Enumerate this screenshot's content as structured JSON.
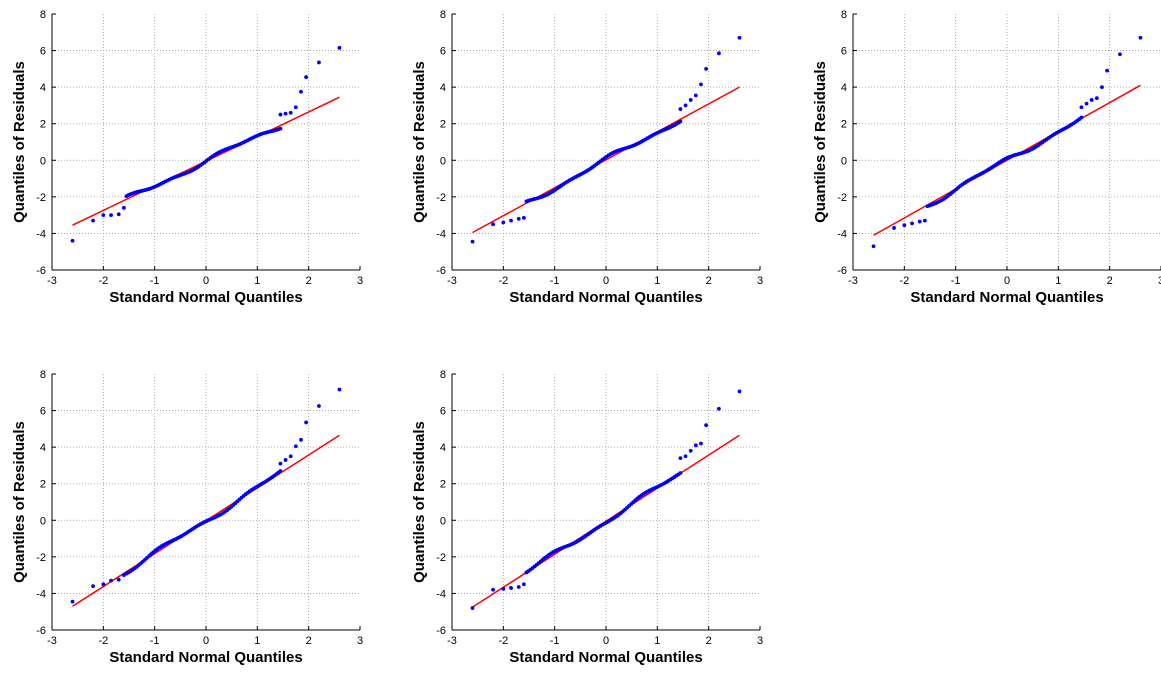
{
  "chart_data": [
    {
      "type": "scatter",
      "xlabel": "Standard Normal Quantiles",
      "ylabel": "Quantiles of Residuals",
      "xlim": [
        -3,
        3
      ],
      "ylim": [
        -6,
        8
      ],
      "xticks": [
        -3,
        -2,
        -1,
        0,
        1,
        2,
        3
      ],
      "yticks": [
        -6,
        -4,
        -2,
        0,
        2,
        4,
        6,
        8
      ],
      "grid": true,
      "reference_line": {
        "x": [
          -2.6,
          2.6
        ],
        "y": [
          -3.55,
          3.45
        ]
      },
      "tail_points": [
        [
          -2.6,
          -4.4
        ],
        [
          -2.2,
          -3.3
        ],
        [
          -2.0,
          -3.0
        ],
        [
          -1.85,
          -3.0
        ],
        [
          -1.7,
          -2.95
        ],
        [
          -1.6,
          -2.6
        ],
        [
          1.45,
          2.5
        ],
        [
          1.55,
          2.55
        ],
        [
          1.65,
          2.6
        ],
        [
          1.75,
          2.9
        ],
        [
          1.85,
          3.75
        ],
        [
          1.95,
          4.55
        ],
        [
          2.2,
          5.35
        ],
        [
          2.6,
          6.15
        ]
      ],
      "colors": {
        "points": "#0000ff",
        "line": "#ff0000"
      }
    },
    {
      "type": "scatter",
      "xlabel": "Standard Normal Quantiles",
      "ylabel": "Quantiles of Residuals",
      "xlim": [
        -3,
        3
      ],
      "ylim": [
        -6,
        8
      ],
      "xticks": [
        -3,
        -2,
        -1,
        0,
        1,
        2,
        3
      ],
      "yticks": [
        -6,
        -4,
        -2,
        0,
        2,
        4,
        6,
        8
      ],
      "grid": true,
      "reference_line": {
        "x": [
          -2.6,
          2.6
        ],
        "y": [
          -3.95,
          4.0
        ]
      },
      "tail_points": [
        [
          -2.6,
          -4.45
        ],
        [
          -2.2,
          -3.5
        ],
        [
          -2.0,
          -3.4
        ],
        [
          -1.85,
          -3.3
        ],
        [
          -1.7,
          -3.2
        ],
        [
          -1.6,
          -3.15
        ],
        [
          1.45,
          2.8
        ],
        [
          1.55,
          3.0
        ],
        [
          1.65,
          3.3
        ],
        [
          1.75,
          3.55
        ],
        [
          1.85,
          4.15
        ],
        [
          1.95,
          5.0
        ],
        [
          2.2,
          5.85
        ],
        [
          2.6,
          6.7
        ]
      ],
      "colors": {
        "points": "#0000ff",
        "line": "#ff0000"
      }
    },
    {
      "type": "scatter",
      "xlabel": "Standard Normal Quantiles",
      "ylabel": "Quantiles of Residuals",
      "xlim": [
        -3,
        3
      ],
      "ylim": [
        -6,
        8
      ],
      "xticks": [
        -3,
        -2,
        -1,
        0,
        1,
        2,
        3
      ],
      "yticks": [
        -6,
        -4,
        -2,
        0,
        2,
        4,
        6,
        8
      ],
      "grid": true,
      "reference_line": {
        "x": [
          -2.6,
          2.6
        ],
        "y": [
          -4.1,
          4.1
        ]
      },
      "tail_points": [
        [
          -2.6,
          -4.7
        ],
        [
          -2.2,
          -3.7
        ],
        [
          -2.0,
          -3.55
        ],
        [
          -1.85,
          -3.45
        ],
        [
          -1.7,
          -3.35
        ],
        [
          -1.6,
          -3.3
        ],
        [
          1.45,
          2.9
        ],
        [
          1.55,
          3.1
        ],
        [
          1.65,
          3.3
        ],
        [
          1.75,
          3.4
        ],
        [
          1.85,
          4.0
        ],
        [
          1.95,
          4.9
        ],
        [
          2.2,
          5.8
        ],
        [
          2.6,
          6.7
        ]
      ],
      "colors": {
        "points": "#0000ff",
        "line": "#ff0000"
      }
    },
    {
      "type": "scatter",
      "xlabel": "Standard Normal Quantiles",
      "ylabel": "Quantiles of Residuals",
      "xlim": [
        -3,
        3
      ],
      "ylim": [
        -6,
        8
      ],
      "xticks": [
        -3,
        -2,
        -1,
        0,
        1,
        2,
        3
      ],
      "yticks": [
        -6,
        -4,
        -2,
        0,
        2,
        4,
        6,
        8
      ],
      "grid": true,
      "reference_line": {
        "x": [
          -2.6,
          2.6
        ],
        "y": [
          -4.7,
          4.65
        ]
      },
      "tail_points": [
        [
          -2.6,
          -4.45
        ],
        [
          -2.2,
          -3.6
        ],
        [
          -2.0,
          -3.5
        ],
        [
          -1.85,
          -3.3
        ],
        [
          -1.7,
          -3.25
        ],
        [
          -1.6,
          -3.0
        ],
        [
          1.45,
          3.1
        ],
        [
          1.55,
          3.3
        ],
        [
          1.65,
          3.5
        ],
        [
          1.75,
          4.05
        ],
        [
          1.85,
          4.4
        ],
        [
          1.95,
          5.35
        ],
        [
          2.2,
          6.25
        ],
        [
          2.6,
          7.15
        ]
      ],
      "colors": {
        "points": "#0000ff",
        "line": "#ff0000"
      }
    },
    {
      "type": "scatter",
      "xlabel": "Standard Normal Quantiles",
      "ylabel": "Quantiles of Residuals",
      "xlim": [
        -3,
        3
      ],
      "ylim": [
        -6,
        8
      ],
      "xticks": [
        -3,
        -2,
        -1,
        0,
        1,
        2,
        3
      ],
      "yticks": [
        -6,
        -4,
        -2,
        0,
        2,
        4,
        6,
        8
      ],
      "grid": true,
      "reference_line": {
        "x": [
          -2.6,
          2.6
        ],
        "y": [
          -4.75,
          4.65
        ]
      },
      "tail_points": [
        [
          -2.6,
          -4.8
        ],
        [
          -2.2,
          -3.8
        ],
        [
          -2.0,
          -3.75
        ],
        [
          -1.85,
          -3.7
        ],
        [
          -1.7,
          -3.65
        ],
        [
          -1.6,
          -3.5
        ],
        [
          1.45,
          3.4
        ],
        [
          1.55,
          3.5
        ],
        [
          1.65,
          3.8
        ],
        [
          1.75,
          4.1
        ],
        [
          1.85,
          4.2
        ],
        [
          1.95,
          5.2
        ],
        [
          2.2,
          6.1
        ],
        [
          2.6,
          7.05
        ]
      ],
      "colors": {
        "points": "#0000ff",
        "line": "#ff0000"
      }
    }
  ]
}
